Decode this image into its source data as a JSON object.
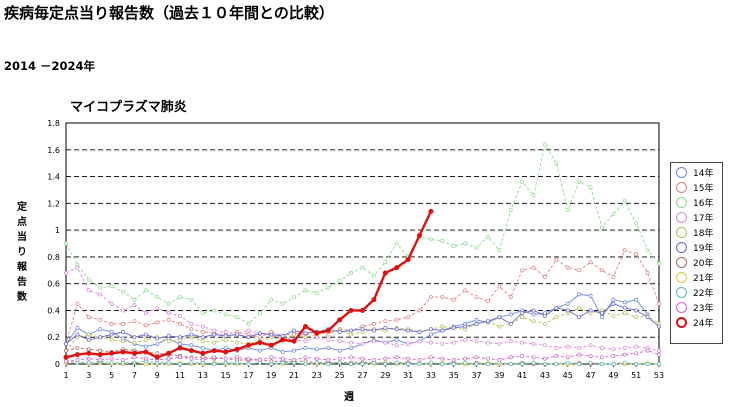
{
  "header": {
    "title": "疾病毎定点当り報告数（過去１０年間との比較）",
    "period": "2014 －2024年"
  },
  "chart_data": {
    "type": "line",
    "title": "マイコプラズマ肺炎",
    "xlabel": "週",
    "ylabel": "定点当り報告数",
    "ylim": [
      0,
      1.8
    ],
    "yticks": [
      "0",
      "0.2",
      "0.4",
      "0.6",
      "0.8",
      "1",
      "1.2",
      "1.4",
      "1.6",
      "1.8"
    ],
    "xlim": [
      1,
      53
    ],
    "xticks": [
      "1",
      "3",
      "5",
      "7",
      "9",
      "11",
      "13",
      "15",
      "17",
      "19",
      "21",
      "23",
      "25",
      "27",
      "29",
      "31",
      "33",
      "35",
      "37",
      "39",
      "41",
      "43",
      "45",
      "47",
      "49",
      "51",
      "53"
    ],
    "grid": "horizontal dashed",
    "legend_position": "right",
    "series": [
      {
        "name": "14年",
        "color": "#6688dd",
        "dashed": false,
        "values": [
          0.15,
          0.27,
          0.22,
          0.26,
          0.24,
          0.19,
          0.15,
          0.13,
          0.15,
          0.19,
          0.15,
          0.14,
          0.12,
          0.1,
          0.12,
          0.1,
          0.12,
          0.1,
          0.12,
          0.09,
          0.1,
          0.12,
          0.11,
          0.12,
          0.1,
          0.12,
          0.15,
          0.18,
          0.16,
          0.18,
          0.15,
          0.17,
          0.22,
          0.25,
          0.28,
          0.3,
          0.33,
          0.31,
          0.35,
          0.37,
          0.4,
          0.37,
          0.38,
          0.42,
          0.45,
          0.52,
          0.51,
          0.35,
          0.48,
          0.46,
          0.48,
          0.37
        ]
      },
      {
        "name": "15年",
        "color": "#e08080",
        "dashed": true,
        "values": [
          0.15,
          0.45,
          0.35,
          0.33,
          0.3,
          0.3,
          0.32,
          0.29,
          0.31,
          0.33,
          0.3,
          0.26,
          0.24,
          0.23,
          0.22,
          0.24,
          0.22,
          0.2,
          0.24,
          0.21,
          0.23,
          0.22,
          0.24,
          0.22,
          0.26,
          0.25,
          0.28,
          0.3,
          0.32,
          0.33,
          0.35,
          0.4,
          0.5,
          0.5,
          0.48,
          0.55,
          0.5,
          0.47,
          0.58,
          0.5,
          0.7,
          0.72,
          0.65,
          0.78,
          0.72,
          0.7,
          0.76,
          0.7,
          0.65,
          0.85,
          0.82,
          0.68,
          0.45
        ]
      },
      {
        "name": "16年",
        "color": "#88dd88",
        "dashed": true,
        "values": [
          0.9,
          0.74,
          0.63,
          0.57,
          0.58,
          0.54,
          0.48,
          0.55,
          0.5,
          0.45,
          0.5,
          0.48,
          0.38,
          0.4,
          0.37,
          0.35,
          0.3,
          0.38,
          0.48,
          0.45,
          0.5,
          0.55,
          0.53,
          0.57,
          0.62,
          0.68,
          0.72,
          0.66,
          0.76,
          0.9,
          0.8,
          0.95,
          0.93,
          0.92,
          0.88,
          0.9,
          0.87,
          0.95,
          0.85,
          1.15,
          1.36,
          1.26,
          1.64,
          1.5,
          1.15,
          1.36,
          1.32,
          1.02,
          1.12,
          1.22,
          1.05,
          0.85,
          0.75
        ]
      },
      {
        "name": "17年",
        "color": "#dd88dd",
        "dashed": true,
        "values": [
          0.68,
          0.72,
          0.55,
          0.52,
          0.45,
          0.4,
          0.44,
          0.38,
          0.42,
          0.38,
          0.36,
          0.3,
          0.28,
          0.25,
          0.24,
          0.22,
          0.25,
          0.23,
          0.21,
          0.2,
          0.18,
          0.17,
          0.2,
          0.18,
          0.17,
          0.16,
          0.15,
          0.17,
          0.16,
          0.14,
          0.15,
          0.17,
          0.16,
          0.15,
          0.16,
          0.18,
          0.17,
          0.16,
          0.15,
          0.17,
          0.16,
          0.15,
          0.14,
          0.12,
          0.13,
          0.12,
          0.14,
          0.12,
          0.11,
          0.12,
          0.13,
          0.12,
          0.1
        ]
      },
      {
        "name": "18年",
        "color": "#bbbb55",
        "dashed": true,
        "values": [
          0.1,
          0.2,
          0.22,
          0.2,
          0.18,
          0.17,
          0.16,
          0.18,
          0.2,
          0.17,
          0.18,
          0.2,
          0.17,
          0.16,
          0.18,
          0.16,
          0.15,
          0.17,
          0.2,
          0.18,
          0.22,
          0.2,
          0.22,
          0.24,
          0.25,
          0.22,
          0.24,
          0.26,
          0.25,
          0.27,
          0.26,
          0.24,
          0.26,
          0.28,
          0.27,
          0.26,
          0.3,
          0.32,
          0.28,
          0.3,
          0.35,
          0.32,
          0.3,
          0.35,
          0.38,
          0.42,
          0.38,
          0.4,
          0.36,
          0.38,
          0.35,
          0.36,
          0.3
        ]
      },
      {
        "name": "19年",
        "color": "#6666cc",
        "dashed": false,
        "values": [
          0.15,
          0.22,
          0.18,
          0.2,
          0.22,
          0.24,
          0.2,
          0.22,
          0.19,
          0.21,
          0.2,
          0.22,
          0.2,
          0.22,
          0.21,
          0.22,
          0.2,
          0.23,
          0.22,
          0.21,
          0.25,
          0.23,
          0.24,
          0.26,
          0.24,
          0.25,
          0.26,
          0.25,
          0.27,
          0.26,
          0.25,
          0.24,
          0.26,
          0.25,
          0.27,
          0.28,
          0.3,
          0.32,
          0.35,
          0.3,
          0.38,
          0.4,
          0.36,
          0.42,
          0.4,
          0.35,
          0.4,
          0.38,
          0.45,
          0.42,
          0.4,
          0.35,
          0.28
        ]
      },
      {
        "name": "20年",
        "color": "#aa6666",
        "dashed": true,
        "values": [
          0.1,
          0.12,
          0.11,
          0.1,
          0.09,
          0.11,
          0.1,
          0.09,
          0.08,
          0.07,
          0.06,
          0.05,
          0.05,
          0.04,
          0.04,
          0.03,
          0.03,
          0.03,
          0.02,
          0.02,
          0.02,
          0.02,
          0.01,
          0.01,
          0.01,
          0.01,
          0.01,
          0.01,
          0.01,
          0.01,
          0.01,
          0.0,
          0.01,
          0.0,
          0.01,
          0.0,
          0.01,
          0.0,
          0.0,
          0.0,
          0.01,
          0.0,
          0.0,
          0.0,
          0.0,
          0.01,
          0.0,
          0.0,
          0.0,
          0.0,
          0.0,
          0.0,
          0.0
        ]
      },
      {
        "name": "21年",
        "color": "#ddcc44",
        "dashed": true,
        "values": [
          0.01,
          0.01,
          0.0,
          0.01,
          0.0,
          0.0,
          0.01,
          0.0,
          0.0,
          0.0,
          0.01,
          0.0,
          0.0,
          0.01,
          0.0,
          0.0,
          0.0,
          0.01,
          0.0,
          0.0,
          0.01,
          0.0,
          0.0,
          0.0,
          0.01,
          0.0,
          0.0,
          0.0,
          0.01,
          0.0,
          0.0,
          0.0,
          0.0,
          0.01,
          0.0,
          0.0,
          0.0,
          0.01,
          0.0,
          0.0,
          0.0,
          0.01,
          0.0,
          0.0,
          0.0,
          0.0,
          0.01,
          0.0,
          0.0,
          0.0,
          0.0,
          0.01,
          0.0
        ]
      },
      {
        "name": "22年",
        "color": "#55bbbb",
        "dashed": true,
        "values": [
          0.02,
          0.01,
          0.01,
          0.02,
          0.01,
          0.01,
          0.01,
          0.02,
          0.01,
          0.01,
          0.0,
          0.01,
          0.01,
          0.0,
          0.01,
          0.01,
          0.0,
          0.01,
          0.0,
          0.01,
          0.01,
          0.0,
          0.01,
          0.0,
          0.01,
          0.0,
          0.0,
          0.01,
          0.0,
          0.01,
          0.0,
          0.0,
          0.01,
          0.0,
          0.0,
          0.01,
          0.0,
          0.0,
          0.01,
          0.0,
          0.0,
          0.01,
          0.0,
          0.0,
          0.01,
          0.0,
          0.01,
          0.0,
          0.0,
          0.01,
          0.0,
          0.0,
          0.0
        ]
      },
      {
        "name": "23年",
        "color": "#cc66cc",
        "dashed": true,
        "values": [
          0.02,
          0.03,
          0.04,
          0.03,
          0.04,
          0.03,
          0.05,
          0.04,
          0.03,
          0.04,
          0.05,
          0.04,
          0.03,
          0.05,
          0.04,
          0.05,
          0.04,
          0.03,
          0.05,
          0.04,
          0.03,
          0.05,
          0.04,
          0.03,
          0.04,
          0.05,
          0.04,
          0.03,
          0.04,
          0.05,
          0.04,
          0.03,
          0.05,
          0.04,
          0.03,
          0.04,
          0.05,
          0.04,
          0.03,
          0.05,
          0.06,
          0.05,
          0.04,
          0.06,
          0.05,
          0.07,
          0.06,
          0.05,
          0.06,
          0.07,
          0.08,
          0.1,
          0.07
        ]
      },
      {
        "name": "24年",
        "color": "#dd1111",
        "dashed": false,
        "bold": true,
        "values": [
          0.05,
          0.07,
          0.08,
          0.07,
          0.08,
          0.09,
          0.08,
          0.09,
          0.05,
          0.08,
          0.12,
          0.1,
          0.08,
          0.1,
          0.09,
          0.11,
          0.14,
          0.16,
          0.14,
          0.18,
          0.17,
          0.28,
          0.23,
          0.25,
          0.33,
          0.4,
          0.4,
          0.48,
          0.68,
          0.72,
          0.78,
          0.96,
          1.14
        ]
      }
    ]
  }
}
